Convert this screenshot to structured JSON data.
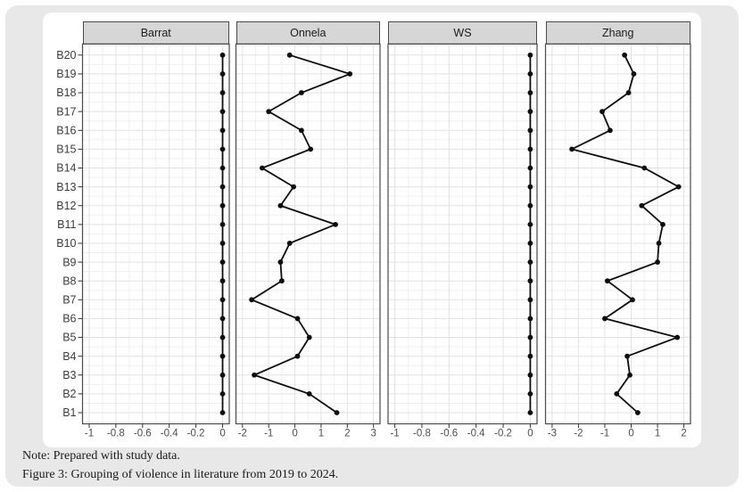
{
  "figure": {
    "note_line1": "Note: Prepared with study data.",
    "note_line2": "Figure 3: Grouping of violence in literature from 2019 to 2024."
  },
  "colors": {
    "outer_bg": "#e8e8e8",
    "card_bg": "#ffffff",
    "strip_bg": "#d6d6d6",
    "strip_border": "#4a4a4a",
    "panel_border": "#4a4a4a",
    "grid_major": "#e2e2e2",
    "grid_minor": "#f0f0f0",
    "axis_text": "#4d4d4d",
    "tick_mark": "#333333",
    "data": "#0d0d0d"
  },
  "chart_data": {
    "type": "line",
    "subtype": "faceted-dot-line",
    "orientation": "horizontal-categorical",
    "grid": true,
    "legend_position": "none",
    "categories": [
      "B20",
      "B19",
      "B18",
      "B17",
      "B16",
      "B15",
      "B14",
      "B13",
      "B12",
      "B11",
      "B10",
      "B9",
      "B8",
      "B7",
      "B6",
      "B5",
      "B4",
      "B3",
      "B2",
      "B1"
    ],
    "panels": [
      {
        "title": "Barrat",
        "ticks": [
          -1,
          -0.8,
          -0.6,
          -0.4,
          -0.2,
          0
        ],
        "tick_labels": [
          "-1",
          "-0.8",
          "-0.6",
          "-0.4",
          "-0.2",
          "0"
        ],
        "values": [
          0,
          0,
          0,
          0,
          0,
          0,
          0,
          0,
          0,
          0,
          0,
          0,
          0,
          0,
          0,
          0,
          0,
          0,
          0,
          0
        ]
      },
      {
        "title": "Onnela",
        "ticks": [
          -2,
          -1,
          0,
          1,
          2,
          3
        ],
        "tick_labels": [
          "-2",
          "-1",
          "0",
          "1",
          "2",
          "3"
        ],
        "values": [
          -0.2,
          2.1,
          0.25,
          -1.0,
          0.25,
          0.6,
          -1.25,
          -0.05,
          -0.55,
          1.55,
          -0.2,
          -0.55,
          -0.5,
          -1.65,
          0.1,
          0.55,
          0.1,
          -1.55,
          0.55,
          1.6
        ]
      },
      {
        "title": "WS",
        "ticks": [
          -1,
          -0.8,
          -0.6,
          -0.4,
          -0.2,
          0
        ],
        "tick_labels": [
          "-1",
          "-0.8",
          "-0.6",
          "-0.4",
          "-0.2",
          "0"
        ],
        "values": [
          0,
          0,
          0,
          0,
          0,
          0,
          0,
          0,
          0,
          0,
          0,
          0,
          0,
          0,
          0,
          0,
          0,
          0,
          0,
          0
        ]
      },
      {
        "title": "Zhang",
        "ticks": [
          -3,
          -2,
          -1,
          0,
          1,
          2
        ],
        "tick_labels": [
          "-3",
          "-2",
          "-1",
          "0",
          "1",
          "2"
        ],
        "values": [
          -0.25,
          0.1,
          -0.1,
          -1.1,
          -0.8,
          -2.25,
          0.5,
          1.8,
          0.4,
          1.2,
          1.05,
          1.0,
          -0.9,
          0.05,
          -1.0,
          1.75,
          -0.15,
          -0.05,
          -0.55,
          0.25
        ]
      }
    ]
  }
}
